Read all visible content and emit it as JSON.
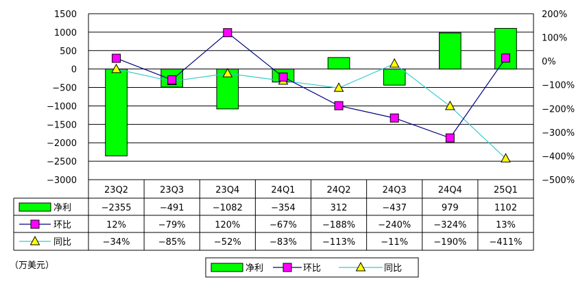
{
  "chart_data": {
    "type": "bar",
    "categories": [
      "23Q2",
      "23Q3",
      "23Q4",
      "24Q1",
      "24Q2",
      "24Q3",
      "24Q4",
      "25Q1"
    ],
    "y_left": {
      "ylim": [
        -3000,
        1500
      ],
      "ticks": [
        1500,
        1000,
        500,
        0,
        -500,
        -1000,
        -1500,
        -2000,
        -2500,
        -3000
      ]
    },
    "y_right": {
      "ylim": [
        -500,
        200
      ],
      "ticks": [
        "200%",
        "100%",
        "0%",
        "-100%",
        "-200%",
        "-300%",
        "-400%",
        "-500%"
      ]
    },
    "grid": true,
    "series": [
      {
        "name": "净利",
        "kind": "bar",
        "axis": "left",
        "color": "#00ff00",
        "values": [
          -2355,
          -491,
          -1082,
          -354,
          312,
          -437,
          979,
          1102
        ],
        "labels": [
          "-2355",
          "-491",
          "-1082",
          "-354",
          "312",
          "-437",
          "979",
          "1102"
        ]
      },
      {
        "name": "环比",
        "kind": "line",
        "axis": "right",
        "color": "#000080",
        "marker_color": "#ff00ff",
        "values": [
          12,
          -79,
          120,
          -67,
          -188,
          -240,
          -324,
          13
        ],
        "labels": [
          "12%",
          "-79%",
          "120%",
          "-67%",
          "-188%",
          "-240%",
          "-324%",
          "13%"
        ]
      },
      {
        "name": "同比",
        "kind": "line",
        "axis": "right",
        "color": "#33cccc",
        "marker_color": "#ffff00",
        "values": [
          -34,
          -85,
          -52,
          -83,
          -113,
          -11,
          -190,
          -411
        ],
        "labels": [
          "-34%",
          "-85%",
          "-52%",
          "-83%",
          "-113%",
          "-11%",
          "-190%",
          "-411%"
        ]
      }
    ],
    "legend_position": "bottom",
    "unit_note": "（万美元）"
  }
}
